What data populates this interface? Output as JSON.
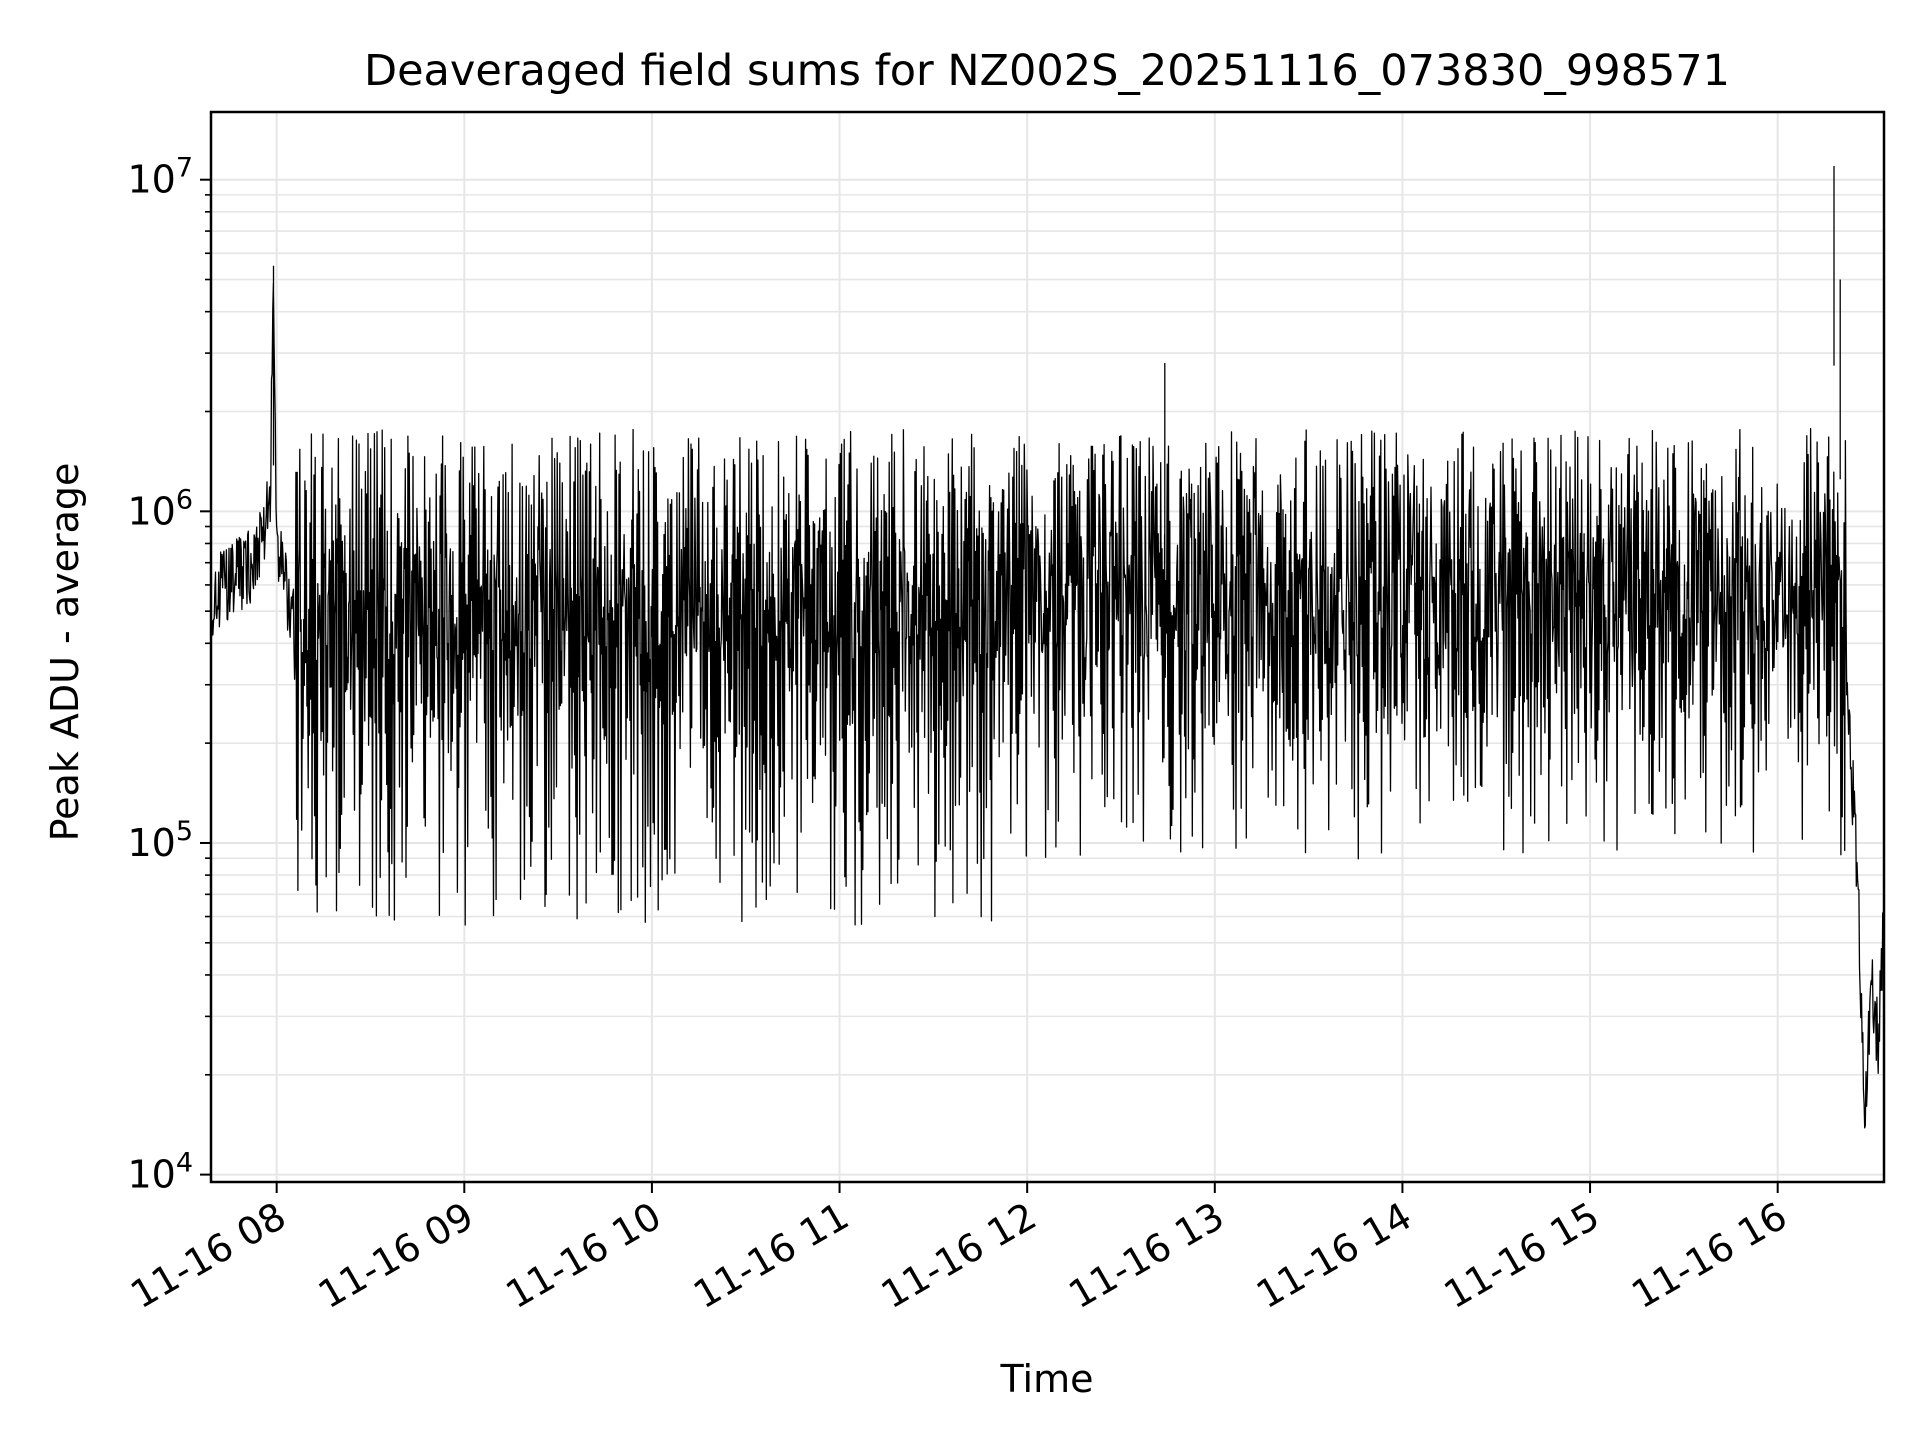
{
  "chart_data": {
    "type": "line",
    "title": "Deaveraged field sums for NZ002S_20251116_073830_998571",
    "xlabel": "Time",
    "ylabel": "Peak ADU - average",
    "yscale": "log",
    "ylim": [
      9500,
      16000000
    ],
    "xlim": [
      "2025-11-16 07:39",
      "2025-11-16 16:34"
    ],
    "grid": true,
    "line_color": "#000000",
    "x_ticks": [
      "11-16 08",
      "11-16 09",
      "11-16 10",
      "11-16 11",
      "11-16 12",
      "11-16 13",
      "11-16 14",
      "11-16 15",
      "11-16 16"
    ],
    "y_ticks": [
      {
        "value": 10000,
        "base": "10",
        "exp": "4"
      },
      {
        "value": 100000,
        "base": "10",
        "exp": "5"
      },
      {
        "value": 1000000,
        "base": "10",
        "exp": "6"
      },
      {
        "value": 10000000,
        "base": "10",
        "exp": "7"
      }
    ],
    "series": [
      {
        "name": "",
        "x": [
          "2025-11-16 07:39",
          "2025-11-16 07:45",
          "2025-11-16 07:52",
          "2025-11-16 07:56",
          "2025-11-16 07:58",
          "2025-11-16 07:59",
          "2025-11-16 08:00",
          "2025-11-16 08:03",
          "2025-11-16 08:06",
          "2025-11-16 08:10",
          "2025-11-16 08:15",
          "2025-11-16 08:20",
          "2025-11-16 08:25",
          "2025-11-16 08:30",
          "2025-11-16 08:35",
          "2025-11-16 08:40",
          "2025-11-16 08:45",
          "2025-11-16 08:50",
          "2025-11-16 08:55",
          "2025-11-16 09:00",
          "2025-11-16 09:10",
          "2025-11-16 09:20",
          "2025-11-16 09:30",
          "2025-11-16 09:40",
          "2025-11-16 09:50",
          "2025-11-16 10:00",
          "2025-11-16 10:10",
          "2025-11-16 10:20",
          "2025-11-16 10:30",
          "2025-11-16 10:40",
          "2025-11-16 10:50",
          "2025-11-16 11:00",
          "2025-11-16 11:10",
          "2025-11-16 11:20",
          "2025-11-16 11:30",
          "2025-11-16 11:40",
          "2025-11-16 11:50",
          "2025-11-16 12:00",
          "2025-11-16 12:10",
          "2025-11-16 12:20",
          "2025-11-16 12:30",
          "2025-11-16 12:40",
          "2025-11-16 12:44",
          "2025-11-16 12:50",
          "2025-11-16 13:00",
          "2025-11-16 13:10",
          "2025-11-16 13:20",
          "2025-11-16 13:30",
          "2025-11-16 13:40",
          "2025-11-16 13:50",
          "2025-11-16 14:00",
          "2025-11-16 14:10",
          "2025-11-16 14:20",
          "2025-11-16 14:25",
          "2025-11-16 14:30",
          "2025-11-16 14:40",
          "2025-11-16 14:50",
          "2025-11-16 15:00",
          "2025-11-16 15:10",
          "2025-11-16 15:20",
          "2025-11-16 15:30",
          "2025-11-16 15:40",
          "2025-11-16 15:50",
          "2025-11-16 16:00",
          "2025-11-16 16:10",
          "2025-11-16 16:15",
          "2025-11-16 16:18",
          "2025-11-16 16:20",
          "2025-11-16 16:22",
          "2025-11-16 16:25",
          "2025-11-16 16:27",
          "2025-11-16 16:28",
          "2025-11-16 16:30",
          "2025-11-16 16:32",
          "2025-11-16 16:34"
        ],
        "y": [
          550000,
          600000,
          700000,
          800000,
          1100000,
          5500000,
          800000,
          600000,
          400000,
          800000,
          1200000,
          1300000,
          400000,
          1500000,
          200000,
          1600000,
          70000,
          1500000,
          80000,
          1600000,
          300000,
          1500000,
          70000,
          1600000,
          100000,
          1500000,
          200000,
          1400000,
          60000,
          1300000,
          100000,
          1200000,
          60000,
          1300000,
          70000,
          1200000,
          100000,
          800000,
          500000,
          900000,
          150000,
          1200000,
          2800000,
          500000,
          700000,
          900000,
          400000,
          1000000,
          200000,
          1200000,
          700000,
          1300000,
          400000,
          1900000,
          800000,
          300000,
          1200000,
          200000,
          1000000,
          150000,
          1100000,
          400000,
          1000000,
          500000,
          600000,
          500000,
          11000000,
          5000000,
          300000,
          100000,
          30000,
          15000,
          35000,
          25000,
          55000
        ]
      }
    ]
  }
}
